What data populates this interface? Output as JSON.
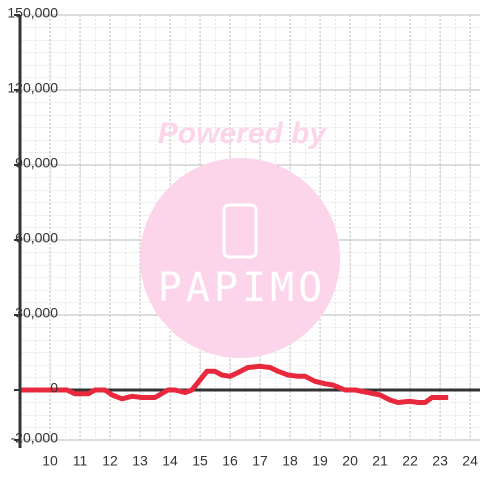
{
  "chart_data": {
    "type": "line",
    "x": [
      9.0,
      10.57,
      10.83,
      11.27,
      11.5,
      11.83,
      12.07,
      12.4,
      12.73,
      13.07,
      13.5,
      13.93,
      14.17,
      14.5,
      14.73,
      15.0,
      15.23,
      15.5,
      15.73,
      16.0,
      16.27,
      16.6,
      17.0,
      17.33,
      17.6,
      17.93,
      18.27,
      18.5,
      18.83,
      19.17,
      19.43,
      19.83,
      20.17,
      20.6,
      21.0,
      21.33,
      21.6,
      22.0,
      22.27,
      22.5,
      22.73,
      23.27
    ],
    "series": [
      {
        "color": "#e8283c",
        "values": [
          0,
          0,
          -1500,
          -1500,
          0,
          0,
          -2000,
          -3500,
          -2500,
          -3000,
          -3000,
          0,
          0,
          -1000,
          0,
          4000,
          7500,
          7500,
          6000,
          5500,
          7000,
          9000,
          9500,
          9000,
          7500,
          6000,
          5500,
          5500,
          3500,
          2500,
          2000,
          0,
          0,
          -1000,
          -2000,
          -4000,
          -5000,
          -4500,
          -5000,
          -5000,
          -3000,
          -3000
        ]
      }
    ],
    "xlim": [
      9,
      24.33
    ],
    "xticks": [
      10,
      11,
      12,
      13,
      14,
      15,
      16,
      17,
      18,
      19,
      20,
      21,
      22,
      23,
      24
    ],
    "ylim": [
      -20000,
      150000
    ],
    "yticks": [
      {
        "value": -20000,
        "label": "-20,000"
      },
      {
        "value": 0,
        "label": "0"
      },
      {
        "value": 30000,
        "label": "30,000"
      },
      {
        "value": 60000,
        "label": "60,000"
      },
      {
        "value": 90000,
        "label": "90,000"
      },
      {
        "value": 120000,
        "label": "120,000"
      },
      {
        "value": 150000,
        "label": "150,000"
      }
    ],
    "grid": true
  },
  "watermark": {
    "text": "Powered by",
    "logo": "PAPIMO"
  }
}
